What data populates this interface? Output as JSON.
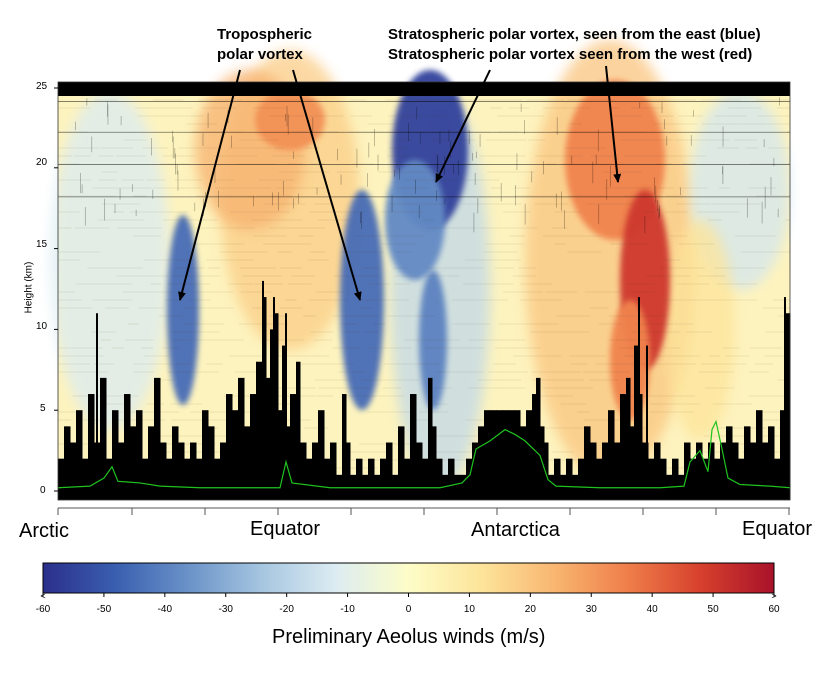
{
  "chart_data": {
    "type": "heatmap",
    "title": "",
    "ylabel": "Height (km)",
    "ylim": [
      0,
      25
    ],
    "y_ticks": [
      "0",
      "5",
      "10",
      "15",
      "20",
      "25"
    ],
    "x_region_labels": [
      "Arctic",
      "Equator",
      "Antarctica",
      "Equator"
    ],
    "colorbar": {
      "label": "Preliminary Aeolus winds (m/s)",
      "range": [
        -60,
        60
      ],
      "ticks": [
        "-60",
        "-50",
        "-40",
        "-30",
        "-20",
        "-10",
        "0",
        "10",
        "20",
        "30",
        "40",
        "50",
        "60"
      ],
      "colors": [
        "#2b2f8c",
        "#3a5fb0",
        "#6b93c8",
        "#a6c6e0",
        "#dcecf2",
        "#fdfdc8",
        "#fde49a",
        "#f8b671",
        "#ef7e4a",
        "#d6402d",
        "#a8122a"
      ]
    },
    "annotations": [
      {
        "label": "Tropospheric polar vortex",
        "lines": [
          "Tropospheric",
          "polar vortex"
        ]
      },
      {
        "label": "Stratospheric polar vortex, seen from the east (blue)"
      },
      {
        "label": "Stratospheric polar vortex seen from the west (red)"
      }
    ],
    "features": {
      "tropospheric_vortex_wind": -45,
      "stratospheric_vortex_east_wind": -55,
      "stratospheric_vortex_west_wind": 50,
      "tropospheric_vortex_height_km": 11.5,
      "stratospheric_vortex_height_km": 19
    }
  }
}
